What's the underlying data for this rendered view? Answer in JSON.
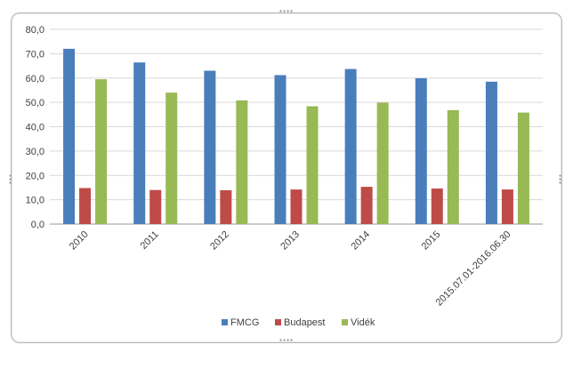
{
  "chart_data": {
    "type": "bar",
    "title": "",
    "xlabel": "",
    "ylabel": "",
    "ylim": [
      0,
      80
    ],
    "yticks": [
      "0,0",
      "10,0",
      "20,0",
      "30,0",
      "40,0",
      "50,0",
      "60,0",
      "70,0",
      "80,0"
    ],
    "grid": true,
    "legend_position": "bottom",
    "categories": [
      "2010",
      "2011",
      "2012",
      "2013",
      "2014",
      "2015",
      "2015.07.01-2016.06.30"
    ],
    "series": [
      {
        "name": "FMCG",
        "color": "#4a7ebb",
        "values": [
          72.0,
          66.4,
          63.0,
          61.2,
          63.7,
          59.9,
          58.5
        ]
      },
      {
        "name": "Budapest",
        "color": "#be4b48",
        "values": [
          14.8,
          14.0,
          13.9,
          14.2,
          15.3,
          14.6,
          14.2
        ]
      },
      {
        "name": "Vidék",
        "color": "#98b954",
        "values": [
          59.5,
          54.0,
          50.8,
          48.4,
          49.9,
          46.8,
          45.8
        ]
      }
    ]
  }
}
